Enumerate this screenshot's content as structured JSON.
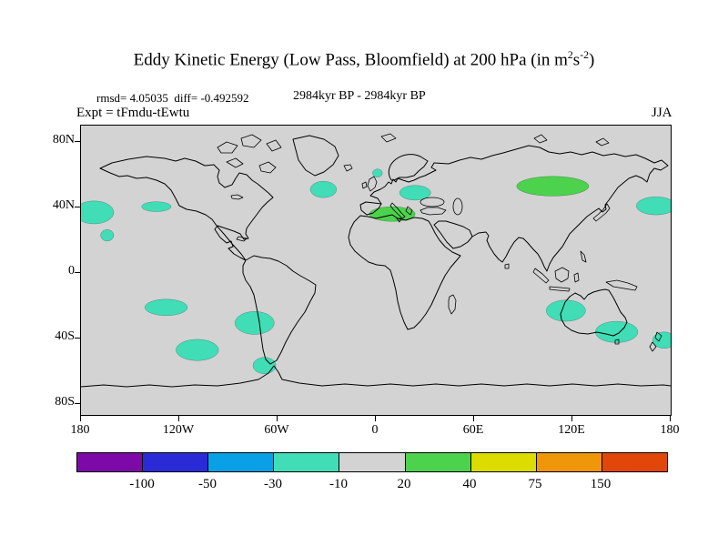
{
  "header": {
    "title": {
      "before": "Eddy Kinetic Energy (Low Pass, Bloomfield) at 200 hPa (in m",
      "sup1": "2",
      "mid": "s",
      "sup2": "-2",
      "after": ")"
    },
    "stats": "rmsd= 4.05035  diff= -0.492592",
    "period": "2984kyr BP - 2984kyr BP",
    "experiment": "Expt = tFmdu-tEwtu",
    "season": "JJA"
  },
  "chart_data": {
    "type": "heatmap",
    "subtype": "filled-contour-world-map",
    "title": "Eddy Kinetic Energy (Low Pass, Bloomfield) at 200 hPa (in m2 s-2)",
    "period": "2984kyr BP - 2984kyr BP",
    "experiment": "tFmdu-tEwtu",
    "season": "JJA",
    "rmsd": 4.05035,
    "diff": -0.492592,
    "units": "m2 s-2",
    "projection": "equirectangular",
    "lon_range": [
      -180,
      180
    ],
    "lat_range": [
      -90,
      90
    ],
    "background_color": "#d3d3d3",
    "lat_ticks": [
      {
        "label": "80N",
        "value": 80
      },
      {
        "label": "40N",
        "value": 40
      },
      {
        "label": "0",
        "value": 0
      },
      {
        "label": "40S",
        "value": -40
      },
      {
        "label": "80S",
        "value": -80
      }
    ],
    "lon_ticks": [
      {
        "label": "180",
        "value": -180
      },
      {
        "label": "120W",
        "value": -120
      },
      {
        "label": "60W",
        "value": -60
      },
      {
        "label": "0",
        "value": 0
      },
      {
        "label": "60E",
        "value": 60
      },
      {
        "label": "120E",
        "value": 120
      },
      {
        "label": "180",
        "value": 180
      }
    ],
    "colorbar": {
      "levels": [
        "-100",
        "-50",
        "-30",
        "-10",
        "20",
        "40",
        "75",
        "150"
      ],
      "colors": [
        "#7d0aa8",
        "#2a2ad7",
        "#0aa0e6",
        "#40ddb6",
        "#d3d3d3",
        "#4cd24c",
        "#dcdc00",
        "#f0960a",
        "#e1460a"
      ],
      "position": "bottom"
    },
    "anomaly_regions": [
      {
        "lon": -172,
        "lat": 37,
        "dlon": 12,
        "dlat": 7,
        "band": 3
      },
      {
        "lon": -134,
        "lat": 40.5,
        "dlon": 9,
        "dlat": 3,
        "band": 3
      },
      {
        "lon": -164,
        "lat": 23,
        "dlon": 4,
        "dlat": 3.5,
        "band": 3
      },
      {
        "lon": -32,
        "lat": 51,
        "dlon": 8,
        "dlat": 5,
        "band": 3
      },
      {
        "lon": 1,
        "lat": 61,
        "dlon": 3,
        "dlat": 2.5,
        "band": 3
      },
      {
        "lon": 24,
        "lat": 49,
        "dlon": 9.5,
        "dlat": 4.5,
        "band": 3
      },
      {
        "lon": 171,
        "lat": 41,
        "dlon": 12,
        "dlat": 5.5,
        "band": 3
      },
      {
        "lon": -128,
        "lat": -21,
        "dlon": 13,
        "dlat": 5,
        "band": 3
      },
      {
        "lon": -74,
        "lat": -30.5,
        "dlon": 12,
        "dlat": 7,
        "band": 3
      },
      {
        "lon": -109,
        "lat": -47,
        "dlon": 13,
        "dlat": 6.5,
        "band": 3
      },
      {
        "lon": -68,
        "lat": -56.5,
        "dlon": 7,
        "dlat": 5,
        "band": 3
      },
      {
        "lon": 116,
        "lat": -23,
        "dlon": 12,
        "dlat": 6.5,
        "band": 3
      },
      {
        "lon": 147,
        "lat": -36,
        "dlon": 13,
        "dlat": 6.5,
        "band": 3
      },
      {
        "lon": 176,
        "lat": -41,
        "dlon": 7,
        "dlat": 5,
        "band": 3
      },
      {
        "lon": 108,
        "lat": 53,
        "dlon": 22,
        "dlat": 6,
        "band": 5
      },
      {
        "lon": 10,
        "lat": 36,
        "dlon": 14,
        "dlat": 4.5,
        "band": 5
      }
    ]
  }
}
